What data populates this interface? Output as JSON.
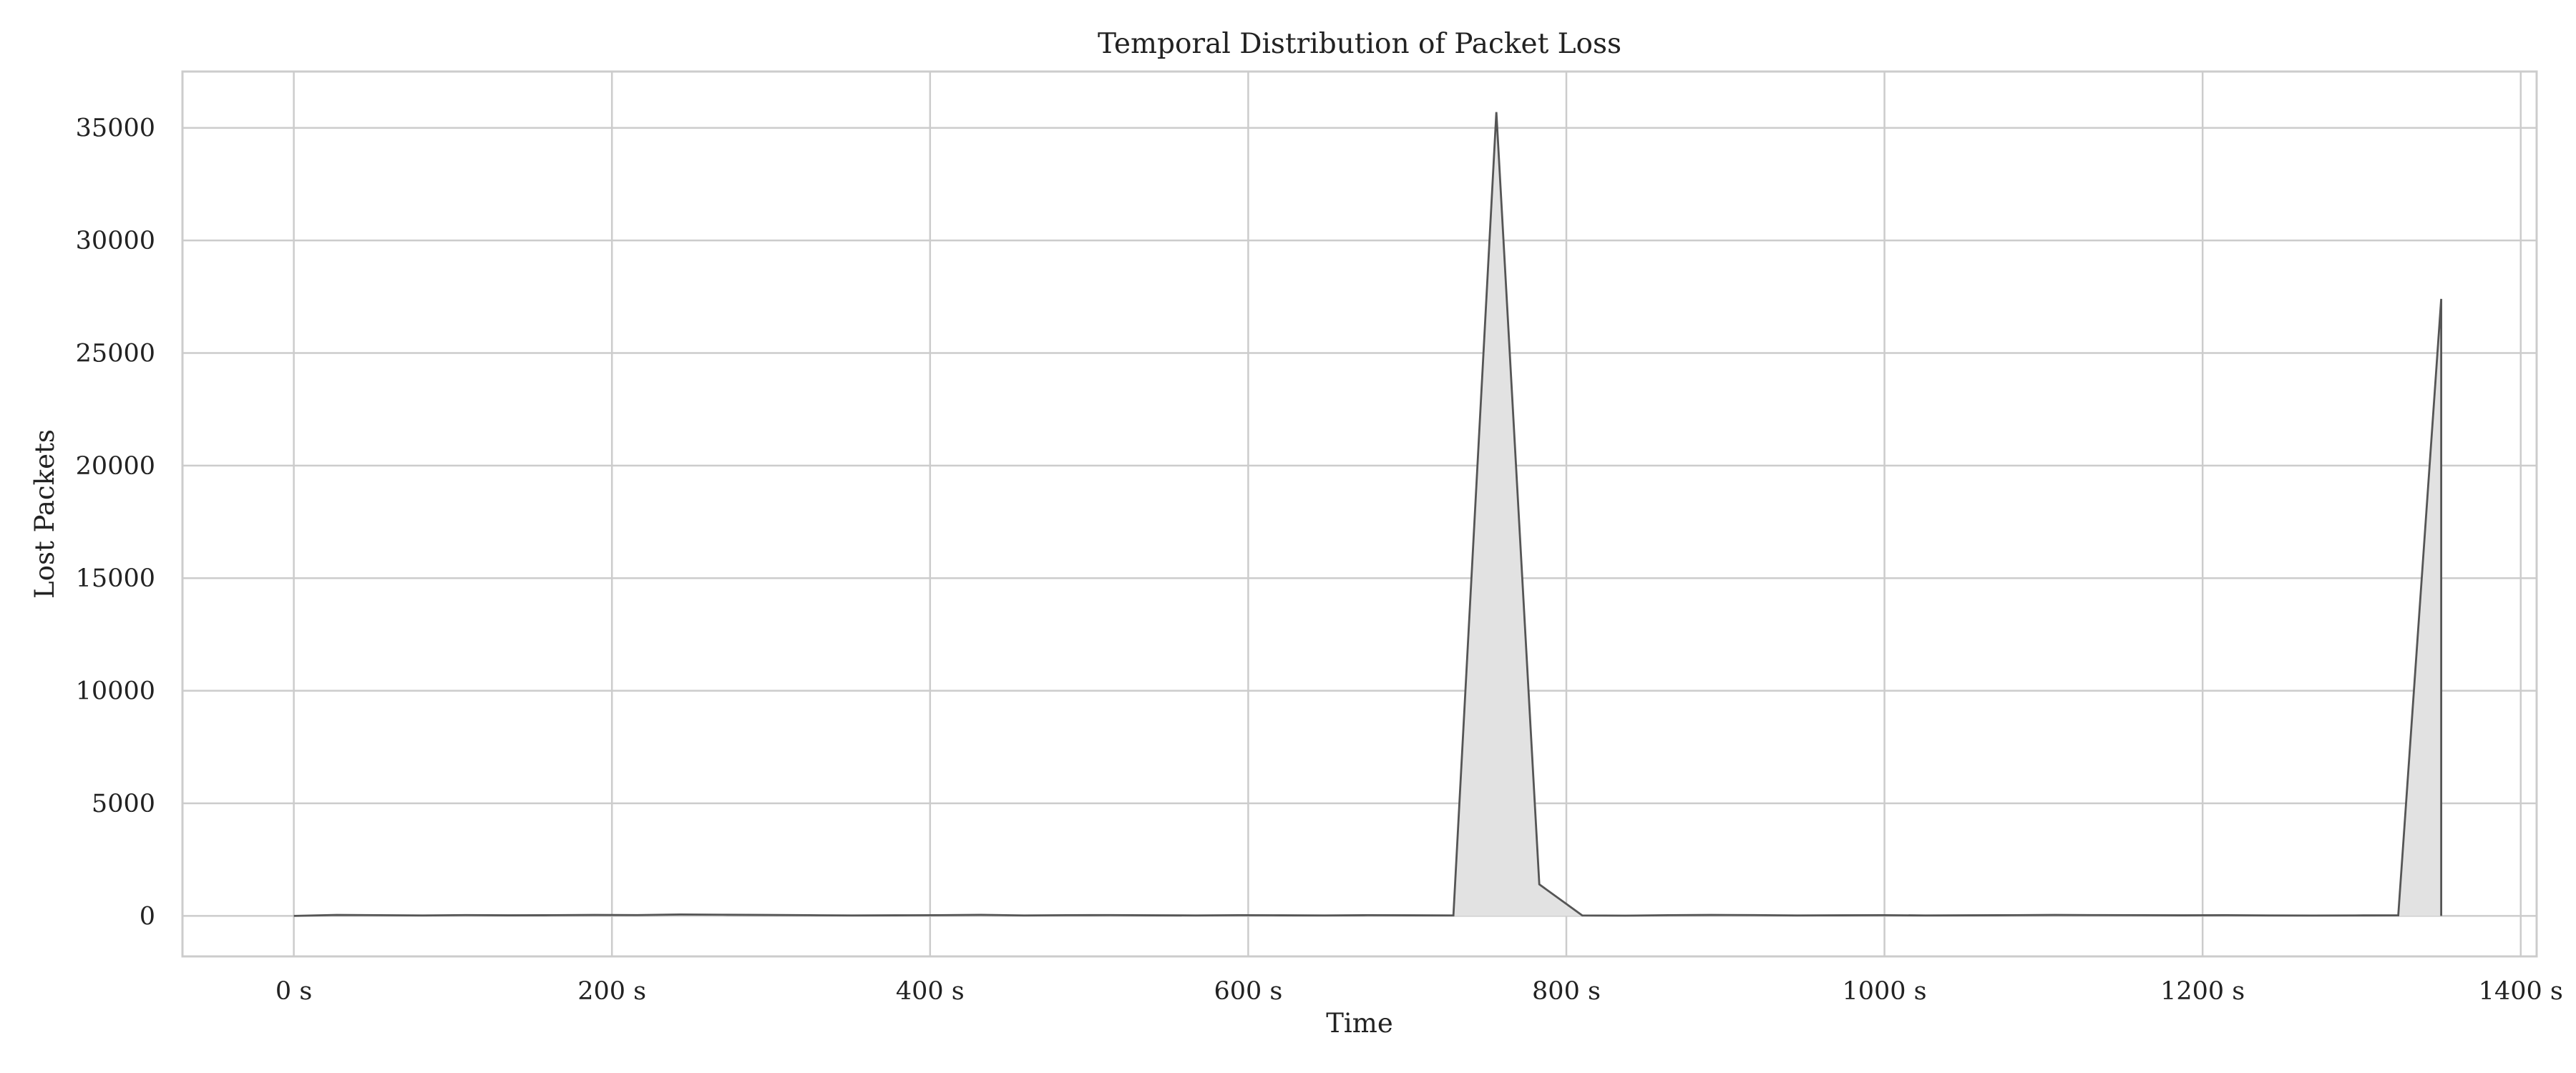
{
  "chart_data": {
    "type": "area",
    "title": "Temporal Distribution of Packet Loss",
    "xlabel": "Time",
    "ylabel": "Lost Packets",
    "x_unit_suffix": " s",
    "xlim": [
      -70,
      1410
    ],
    "ylim": [
      -1800,
      37500
    ],
    "xticks": [
      0,
      200,
      400,
      600,
      800,
      1000,
      1200,
      1400
    ],
    "yticks": [
      0,
      5000,
      10000,
      15000,
      20000,
      25000,
      30000,
      35000
    ],
    "grid": true,
    "legend": "none",
    "colors": {
      "line": "#555555",
      "fill": "#e2e2e2",
      "grid": "#cccccc",
      "spine": "#cccccc",
      "text": "#222222"
    },
    "series": [
      {
        "x": [
          0,
          27,
          54,
          81,
          108,
          135,
          162,
          189,
          216,
          243,
          270,
          297,
          324,
          351,
          378,
          405,
          432,
          459,
          486,
          513,
          540,
          567,
          594,
          621,
          648,
          675,
          702,
          729,
          756,
          783,
          810,
          837,
          864,
          891,
          918,
          945,
          972,
          999,
          1026,
          1053,
          1080,
          1107,
          1134,
          1161,
          1188,
          1215,
          1242,
          1269,
          1296,
          1323,
          1350
        ],
        "y": [
          0,
          40,
          30,
          20,
          35,
          25,
          30,
          40,
          35,
          60,
          50,
          40,
          30,
          20,
          25,
          30,
          45,
          20,
          30,
          35,
          25,
          20,
          30,
          25,
          20,
          30,
          25,
          20,
          35700,
          1400,
          20,
          10,
          30,
          40,
          35,
          20,
          25,
          30,
          20,
          25,
          30,
          40,
          35,
          30,
          25,
          30,
          20,
          15,
          20,
          25,
          27400
        ]
      }
    ]
  }
}
